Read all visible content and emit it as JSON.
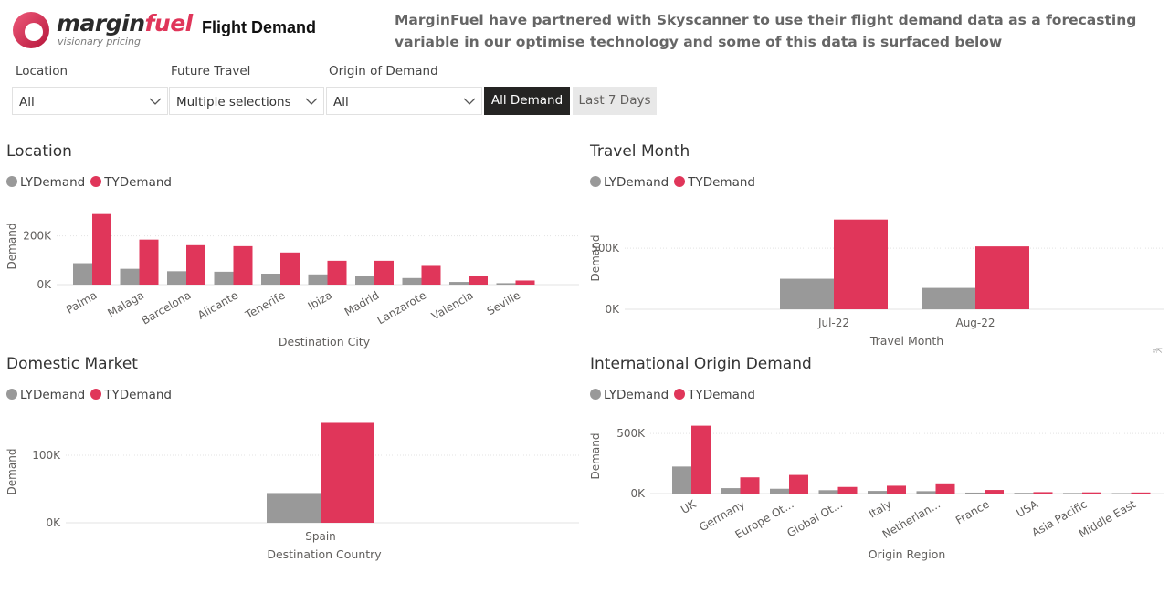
{
  "header": {
    "logo_text_1": "margin",
    "logo_text_2": "fuel",
    "logo_tagline": "visionary pricing",
    "title": "Flight Demand",
    "intro_text": "MarginFuel have partnered with Skyscanner to use their flight demand data as a forecasting variable in our optimise technology and some of this data is surfaced below"
  },
  "filters": {
    "location_label": "Location",
    "location_value": "All",
    "future_travel_label": "Future Travel",
    "future_travel_value": "Multiple selections",
    "origin_label": "Origin of Demand",
    "origin_value": "All",
    "all_demand_label": "All Demand",
    "last7_label": "Last 7 Days"
  },
  "legend": {
    "ly_label": "LYDemand",
    "ty_label": "TYDemand"
  },
  "colors": {
    "ly": "#999999",
    "ty": "#e0365a",
    "grid": "#e3e3e3",
    "axis_text": "#605e5c",
    "brand": "#e0365a"
  },
  "chart_data": [
    {
      "id": "location",
      "type": "bar",
      "title": "Location",
      "xlabel": "Destination City",
      "ylabel": "Demand",
      "categories": [
        "Palma",
        "Malaga",
        "Barcelona",
        "Alicante",
        "Tenerife",
        "Ibiza",
        "Madrid",
        "Lanzarote",
        "Valencia",
        "Seville"
      ],
      "series": [
        {
          "name": "LYDemand",
          "values": [
            88000,
            65000,
            55000,
            53000,
            45000,
            42000,
            35000,
            27000,
            11000,
            6000
          ]
        },
        {
          "name": "TYDemand",
          "values": [
            290000,
            185000,
            162000,
            158000,
            132000,
            98000,
            98000,
            77000,
            34000,
            17000
          ]
        }
      ],
      "yticks": [
        0,
        200000
      ],
      "ytick_labels": [
        "0K",
        "200K"
      ],
      "ylim": [
        0,
        300000
      ],
      "grid": true,
      "legend_position": "top-left"
    },
    {
      "id": "travel-month",
      "type": "bar",
      "title": "Travel Month",
      "xlabel": "Travel Month",
      "ylabel": "Demand",
      "categories": [
        "Jul-22",
        "Aug-22"
      ],
      "series": [
        {
          "name": "LYDemand",
          "values": [
            250000,
            175000
          ]
        },
        {
          "name": "TYDemand",
          "values": [
            735000,
            515000
          ]
        }
      ],
      "yticks": [
        0,
        500000
      ],
      "ytick_labels": [
        "0K",
        "500K"
      ],
      "ylim": [
        0,
        800000
      ],
      "grid": true,
      "legend_position": "top-left"
    },
    {
      "id": "domestic-market",
      "type": "bar",
      "title": "Domestic Market",
      "xlabel": "Destination Country",
      "ylabel": "Demand",
      "categories": [
        "Spain"
      ],
      "series": [
        {
          "name": "LYDemand",
          "values": [
            44000
          ]
        },
        {
          "name": "TYDemand",
          "values": [
            148000
          ]
        }
      ],
      "yticks": [
        0,
        100000
      ],
      "ytick_labels": [
        "0K",
        "100K"
      ],
      "ylim": [
        0,
        150000
      ],
      "grid": true,
      "legend_position": "top-left"
    },
    {
      "id": "international-origin",
      "type": "bar",
      "title": "International Origin Demand",
      "xlabel": "Origin Region",
      "ylabel": "Demand",
      "categories": [
        "UK",
        "Germany",
        "Europe Ot...",
        "Global Ot...",
        "Italy",
        "Netherlan...",
        "France",
        "USA",
        "Asia Pacific",
        "Middle East"
      ],
      "series": [
        {
          "name": "LYDemand",
          "values": [
            225000,
            45000,
            40000,
            28000,
            22000,
            20000,
            8000,
            6000,
            5000,
            4000
          ]
        },
        {
          "name": "TYDemand",
          "values": [
            565000,
            135000,
            155000,
            55000,
            65000,
            85000,
            30000,
            12000,
            10000,
            9000
          ]
        }
      ],
      "yticks": [
        0,
        500000
      ],
      "ytick_labels": [
        "0K",
        "500K"
      ],
      "ylim": [
        0,
        600000
      ],
      "grid": true,
      "legend_position": "top-left"
    }
  ]
}
